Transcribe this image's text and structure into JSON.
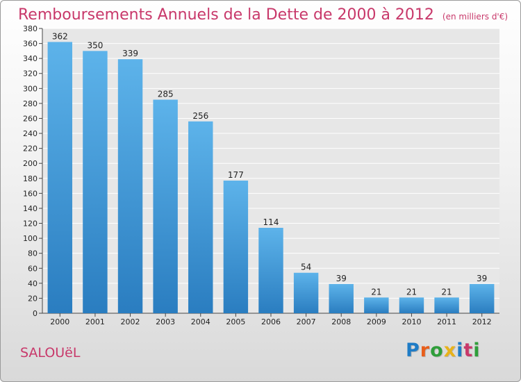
{
  "header": {
    "title": "Remboursements Annuels de la Dette de 2000 à 2012",
    "unit": "(en milliers d'€)"
  },
  "footer": {
    "town": "SALOUëL",
    "logo_text": "Proxiti",
    "logo_colors": [
      "#1f7cc6",
      "#e85e1a",
      "#2f9e3a",
      "#e8b21a",
      "#1f7cc6",
      "#c8386a",
      "#2f9e3a"
    ]
  },
  "colors": {
    "title": "#c8386a",
    "bar_top": "#5db3ea",
    "bar_bottom": "#2a7dc0",
    "plot_bg": "#e7e7e7",
    "grid": "#ffffff"
  },
  "chart_data": {
    "type": "bar",
    "title": "Remboursements Annuels de la Dette de 2000 à 2012",
    "subtitle": "(en milliers d'€)",
    "categories": [
      "2000",
      "2001",
      "2002",
      "2003",
      "2004",
      "2005",
      "2006",
      "2007",
      "2008",
      "2009",
      "2010",
      "2011",
      "2012"
    ],
    "values": [
      362,
      350,
      339,
      285,
      256,
      177,
      114,
      54,
      39,
      21,
      21,
      21,
      39
    ],
    "xlabel": "",
    "ylabel": "",
    "ylim": [
      0,
      380
    ],
    "yticks": [
      0,
      20,
      40,
      60,
      80,
      100,
      120,
      140,
      160,
      180,
      200,
      220,
      240,
      260,
      280,
      300,
      320,
      340,
      360,
      380
    ],
    "grid": true
  }
}
